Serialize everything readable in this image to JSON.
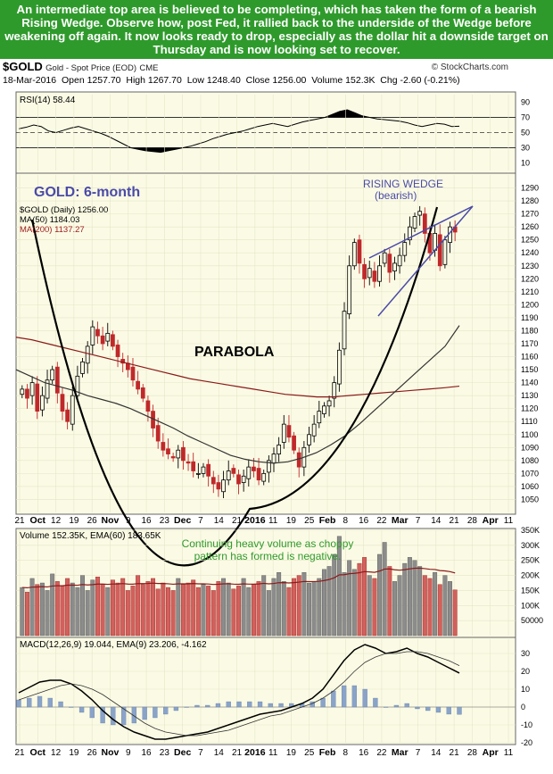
{
  "header": {
    "text": "An intermediate top area is believed to be completing, which has taken the form of a bearish Rising Wedge. Observe how, post Fed, it rallied back to the underside of the Wedge before weakening off again. It now looks ready to drop, especially as the dollar hit a downside target on Thursday and is now looking set to recover."
  },
  "info": {
    "symbol": "$GOLD",
    "name": "Gold - Spot Price (EOD)",
    "exchange": "CME",
    "brand": "© StockCharts.com",
    "date": "18-Mar-2016",
    "open": "Open 1257.70",
    "high": "High 1267.70",
    "low": "Low 1248.40",
    "close": "Close 1256.00",
    "volume": "Volume 152.3K",
    "chg": "Chg -2.60 (-0.21%)"
  },
  "chart_data": [
    {
      "type": "line",
      "panel": "rsi",
      "label": "RSI(14) 58.44",
      "ylim": [
        0,
        100
      ],
      "yticks": [
        90,
        70,
        50,
        30,
        10
      ],
      "reference_lines": [
        70,
        50,
        30
      ],
      "series": [
        {
          "name": "RSI(14)",
          "values": [
            55,
            57,
            60,
            58,
            52,
            50,
            53,
            56,
            58,
            55,
            52,
            49,
            45,
            40,
            35,
            30,
            28,
            26,
            25,
            24,
            26,
            28,
            30,
            32,
            35,
            38,
            42,
            45,
            48,
            50,
            52,
            55,
            58,
            60,
            62,
            60,
            58,
            61,
            64,
            66,
            68,
            70,
            74,
            78,
            80,
            76,
            72,
            70,
            68,
            67,
            66,
            65,
            63,
            60,
            58,
            60,
            62,
            61,
            58,
            58.44
          ]
        }
      ]
    },
    {
      "type": "candlestick",
      "panel": "price",
      "title": "GOLD: 6-month",
      "legend": [
        "$GOLD (Daily) 1256.00",
        "MA(50) 1184.03",
        "MA(200) 1137.27"
      ],
      "ylim": [
        1040,
        1300
      ],
      "yticks": [
        1050,
        1060,
        1070,
        1080,
        1090,
        1100,
        1110,
        1120,
        1130,
        1140,
        1150,
        1160,
        1170,
        1180,
        1190,
        1200,
        1210,
        1220,
        1230,
        1240,
        1250,
        1260,
        1270,
        1280,
        1290
      ],
      "annotations": [
        "RISING WEDGE",
        "(bearish)",
        "PARABOLA"
      ],
      "closes": [
        1135,
        1128,
        1140,
        1118,
        1130,
        1142,
        1150,
        1132,
        1118,
        1110,
        1130,
        1145,
        1156,
        1168,
        1183,
        1176,
        1170,
        1178,
        1168,
        1160,
        1155,
        1150,
        1142,
        1135,
        1128,
        1118,
        1105,
        1095,
        1088,
        1085,
        1082,
        1088,
        1080,
        1078,
        1072,
        1070,
        1075,
        1068,
        1062,
        1058,
        1065,
        1072,
        1070,
        1062,
        1068,
        1075,
        1072,
        1065,
        1070,
        1080,
        1085,
        1092,
        1108,
        1098,
        1088,
        1075,
        1090,
        1100,
        1108,
        1118,
        1122,
        1126,
        1140,
        1165,
        1195,
        1230,
        1248,
        1232,
        1220,
        1228,
        1218,
        1230,
        1240,
        1225,
        1232,
        1238,
        1248,
        1260,
        1268,
        1272,
        1255,
        1240,
        1255,
        1230,
        1250,
        1260,
        1256
      ],
      "ma50": [
        1150,
        1145,
        1140,
        1137,
        1134,
        1130,
        1127,
        1124,
        1120,
        1115,
        1110,
        1105,
        1099,
        1094,
        1089,
        1084,
        1081,
        1079,
        1078,
        1079,
        1082,
        1086,
        1092,
        1099,
        1108,
        1118,
        1128,
        1138,
        1148,
        1158,
        1168,
        1184.03
      ],
      "ma200": [
        1175,
        1173,
        1170,
        1167,
        1164,
        1161,
        1158,
        1155,
        1152,
        1149,
        1146,
        1143,
        1141,
        1139,
        1137,
        1135,
        1133,
        1131,
        1130,
        1129,
        1129,
        1130,
        1131,
        1132,
        1133,
        1134,
        1135,
        1136,
        1137.27
      ]
    },
    {
      "type": "bar",
      "panel": "volume",
      "label": "Volume 152.35K, EMA(60) 183.65K",
      "annotation": [
        "Continuing heavy volume as choppy",
        "pattern has formed is negative."
      ],
      "ylim": [
        0,
        350000
      ],
      "yticks": [
        "350K",
        "300K",
        "250K",
        "200K",
        "150K",
        "100K",
        "50000"
      ],
      "values": [
        160,
        145,
        190,
        170,
        175,
        150,
        205,
        180,
        165,
        190,
        175,
        160,
        200,
        150,
        185,
        195,
        170,
        160,
        185,
        175,
        190,
        150,
        165,
        200,
        170,
        180,
        190,
        155,
        175,
        160,
        150,
        190,
        170,
        175,
        185,
        160,
        170,
        165,
        150,
        180,
        190,
        175,
        155,
        165,
        190,
        160,
        170,
        180,
        200,
        150,
        190,
        210,
        180,
        160,
        190,
        200,
        210,
        175,
        180,
        190,
        220,
        230,
        270,
        330,
        210,
        250,
        220,
        240,
        260,
        200,
        190,
        270,
        310,
        230,
        180,
        200,
        240,
        260,
        250,
        230,
        200,
        190,
        210,
        170,
        200,
        180,
        152
      ]
    },
    {
      "type": "line",
      "panel": "macd",
      "label": "MACD(12,26,9) 19.044, EMA(9) 23.206, -4.162",
      "ylim": [
        -20,
        38
      ],
      "yticks": [
        30,
        20,
        10,
        0,
        -10,
        -20
      ],
      "series": [
        {
          "name": "MACD",
          "values": [
            8,
            11,
            14,
            15,
            15,
            13,
            9,
            4,
            -2,
            -7,
            -11,
            -14,
            -16,
            -18,
            -18,
            -17,
            -16,
            -15,
            -14,
            -12,
            -10,
            -8,
            -6,
            -4,
            -3,
            -2,
            0,
            2,
            5,
            10,
            18,
            26,
            32,
            35,
            33,
            30,
            31,
            33,
            30,
            28,
            25,
            22,
            19.044
          ]
        },
        {
          "name": "EMA(9)",
          "values": [
            4,
            6,
            8,
            10,
            12,
            13,
            12,
            10,
            7,
            3,
            -1,
            -5,
            -9,
            -12,
            -14,
            -15,
            -16,
            -16,
            -15,
            -14,
            -13,
            -11,
            -9,
            -7,
            -5,
            -4,
            -2,
            0,
            2,
            5,
            9,
            14,
            20,
            25,
            28,
            30,
            30,
            31,
            31,
            30,
            28,
            26,
            23.206
          ]
        }
      ]
    }
  ],
  "x_labels": [
    "21",
    "Oct",
    "12",
    "19",
    "26",
    "Nov",
    "9",
    "16",
    "23",
    "Dec",
    "7",
    "14",
    "21",
    "2016",
    "11",
    "19",
    "25",
    "Feb",
    "8",
    "16",
    "22",
    "Mar",
    "7",
    "14",
    "21",
    "28",
    "Apr",
    "11"
  ]
}
